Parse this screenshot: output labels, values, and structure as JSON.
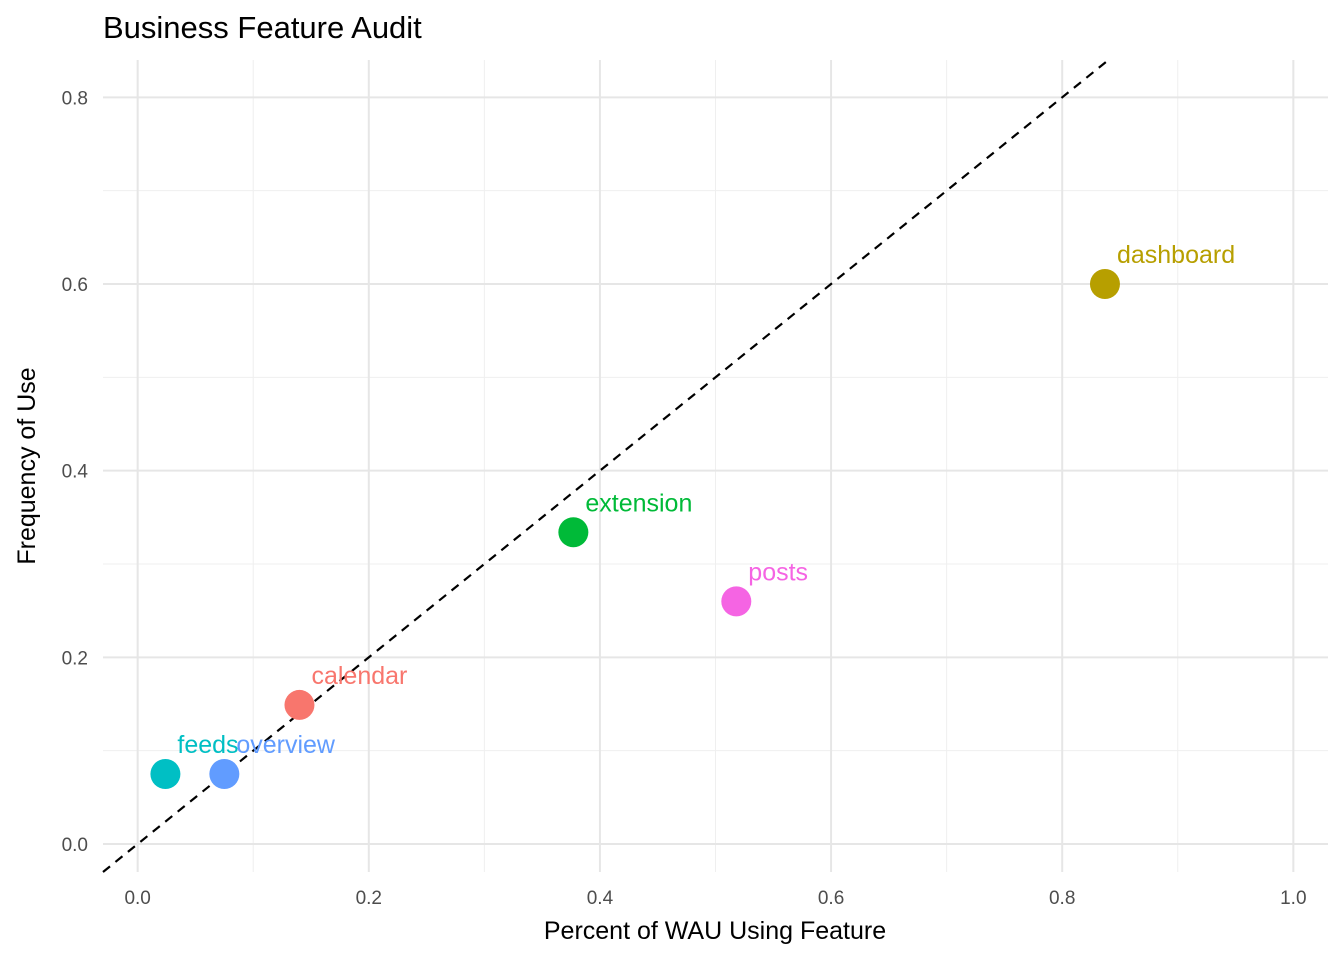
{
  "chart_data": {
    "type": "scatter",
    "title": "Business Feature Audit",
    "xlabel": "Percent of WAU Using Feature",
    "ylabel": "Frequency of Use",
    "xlim": [
      -0.03,
      1.03
    ],
    "ylim": [
      -0.03,
      0.84
    ],
    "x_ticks": [
      0.0,
      0.2,
      0.4,
      0.6,
      0.8,
      1.0
    ],
    "x_tick_labels": [
      "0.0",
      "0.2",
      "0.4",
      "0.6",
      "0.8",
      "1.0"
    ],
    "y_ticks": [
      0.0,
      0.2,
      0.4,
      0.6,
      0.8
    ],
    "y_tick_labels": [
      "0.0",
      "0.2",
      "0.4",
      "0.6",
      "0.8"
    ],
    "grid": true,
    "reference_line": {
      "slope": 1,
      "intercept": 0,
      "style": "dashed",
      "color": "#000000"
    },
    "points": [
      {
        "label": "calendar",
        "x": 0.14,
        "y": 0.149,
        "color": "#F8766D"
      },
      {
        "label": "dashboard",
        "x": 0.837,
        "y": 0.6,
        "color": "#B79F00"
      },
      {
        "label": "extension",
        "x": 0.377,
        "y": 0.334,
        "color": "#00BA38"
      },
      {
        "label": "feeds",
        "x": 0.024,
        "y": 0.075,
        "color": "#00BFC4"
      },
      {
        "label": "overview",
        "x": 0.075,
        "y": 0.075,
        "color": "#619CFF"
      },
      {
        "label": "posts",
        "x": 0.518,
        "y": 0.26,
        "color": "#F564E3"
      }
    ]
  }
}
